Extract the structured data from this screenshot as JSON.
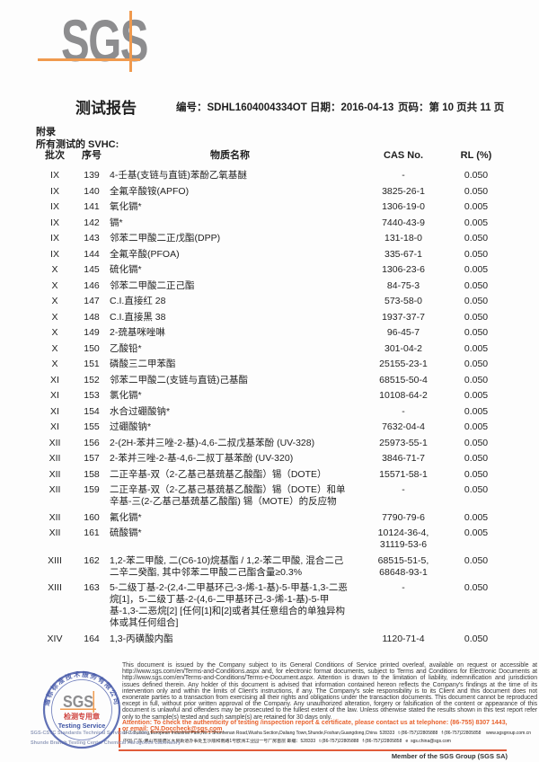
{
  "header": {
    "logo_text": "SGS",
    "title": "测试报告",
    "no_label": "编号：",
    "no_value": "SDHL1604004334OT",
    "date_label": "日期：",
    "date_value": "2016-04-13",
    "page_label": "页码：",
    "page_value": "第 10 页共 11 页"
  },
  "section": {
    "appendix": "附录",
    "svhc_heading": "所有测试的 SVHC:"
  },
  "table": {
    "headers": {
      "batch": "批次",
      "serial": "序号",
      "name": "物质名称",
      "cas": "CAS No.",
      "rl": "RL (%)"
    },
    "rows": [
      {
        "batch": "IX",
        "serial": "139",
        "name": "4-壬基(支链与直链)苯酚乙氧基醚",
        "cas": "-",
        "rl": "0.050"
      },
      {
        "batch": "IX",
        "serial": "140",
        "name": "全氟辛酸铵(APFO)",
        "cas": "3825-26-1",
        "rl": "0.050"
      },
      {
        "batch": "IX",
        "serial": "141",
        "name": "氧化镉*",
        "cas": "1306-19-0",
        "rl": "0.005"
      },
      {
        "batch": "IX",
        "serial": "142",
        "name": "镉*",
        "cas": "7440-43-9",
        "rl": "0.005"
      },
      {
        "batch": "IX",
        "serial": "143",
        "name": "邻苯二甲酸二正戊酯(DPP)",
        "cas": "131-18-0",
        "rl": "0.050"
      },
      {
        "batch": "IX",
        "serial": "144",
        "name": "全氟辛酸(PFOA)",
        "cas": "335-67-1",
        "rl": "0.050"
      },
      {
        "batch": "X",
        "serial": "145",
        "name": "硫化镉*",
        "cas": "1306-23-6",
        "rl": "0.005"
      },
      {
        "batch": "X",
        "serial": "146",
        "name": "邻苯二甲酸二正己酯",
        "cas": "84-75-3",
        "rl": "0.050"
      },
      {
        "batch": "X",
        "serial": "147",
        "name": "C.I.直接红 28",
        "cas": "573-58-0",
        "rl": "0.050"
      },
      {
        "batch": "X",
        "serial": "148",
        "name": "C.I.直接黑 38",
        "cas": "1937-37-7",
        "rl": "0.050"
      },
      {
        "batch": "X",
        "serial": "149",
        "name": "2-巯基咪唑啉",
        "cas": "96-45-7",
        "rl": "0.050"
      },
      {
        "batch": "X",
        "serial": "150",
        "name": "乙酸铅*",
        "cas": "301-04-2",
        "rl": "0.005"
      },
      {
        "batch": "X",
        "serial": "151",
        "name": "磷酸三二甲苯酯",
        "cas": "25155-23-1",
        "rl": "0.050"
      },
      {
        "batch": "XI",
        "serial": "152",
        "name": "邻苯二甲酸二(支链与直链)己基酯",
        "cas": "68515-50-4",
        "rl": "0.050"
      },
      {
        "batch": "XI",
        "serial": "153",
        "name": "氯化镉*",
        "cas": "10108-64-2",
        "rl": "0.005"
      },
      {
        "batch": "XI",
        "serial": "154",
        "name": "水合过硼酸钠*",
        "cas": "-",
        "rl": "0.005"
      },
      {
        "batch": "XI",
        "serial": "155",
        "name": "过硼酸钠*",
        "cas": "7632-04-4",
        "rl": "0.005"
      },
      {
        "batch": "XII",
        "serial": "156",
        "name": "2-(2H-苯并三唑-2-基)-4,6-二叔戊基苯酚 (UV-328)",
        "cas": "25973-55-1",
        "rl": "0.050"
      },
      {
        "batch": "XII",
        "serial": "157",
        "name": "2-苯并三唑-2-基-4,6-二叔丁基苯酚 (UV-320)",
        "cas": "3846-71-7",
        "rl": "0.050"
      },
      {
        "batch": "XII",
        "serial": "158",
        "name": "二正辛基-双（2-乙基己基巯基乙酸酯）锡（DOTE）",
        "cas": "15571-58-1",
        "rl": "0.050"
      },
      {
        "batch": "XII",
        "serial": "159",
        "name": "二正辛基-双（2-乙基己基巯基乙酸酯）锡（DOTE）和单辛基-三(2-乙基己基巯基乙酸酯) 锡（MOTE）的反应物",
        "cas": "-",
        "rl": "0.050"
      },
      {
        "batch": "XII",
        "serial": "160",
        "name": "氟化镉*",
        "cas": "7790-79-6",
        "rl": "0.005"
      },
      {
        "batch": "XII",
        "serial": "161",
        "name": "硫酸镉*",
        "cas": "10124-36-4,\n31119-53-6",
        "rl": "0.005"
      },
      {
        "batch": "XIII",
        "serial": "162",
        "name": "1,2-苯二甲酸, 二(C6-10)烷基酯 / 1,2-苯二甲酸, 混合二己二辛二癸酯, 其中邻苯二甲酸二己酯含量≥0.3%",
        "cas": "68515-51-5,\n68648-93-1",
        "rl": "0.050"
      },
      {
        "batch": "XIII",
        "serial": "163",
        "name": "5-二级丁基-2-(2,4-二甲基环己-3-烯-1-基)-5-甲基-1,3-二恶烷[1]，5-二级丁基-2-(4,6-二甲基环己-3-烯-1-基)-5-甲基-1,3-二恶烷[2] [任何[1]和[2]或者其任意组合的单独异构体或其任何组合]",
        "cas": "-",
        "rl": "0.050"
      },
      {
        "batch": "XIV",
        "serial": "164",
        "name": "1,3-丙磺酸内酯",
        "cas": "1120-71-4",
        "rl": "0.050"
      }
    ]
  },
  "stamp": {
    "ring_text": "通标标准技术服务有限公司",
    "center_logo": "SGS",
    "red_label": "检测专用章",
    "service_label": "Testing Service",
    "company_line1": "SGS-CSTC Standards Technical Services Co., Ltd.",
    "company_line2": "Shunde Branch Testing Center Chemical Hardgoods Laboratory"
  },
  "footer": {
    "legal_text": "This document is issued by the Company subject to its General Conditions of Service printed overleaf, available on request or accessible at http://www.sgs.com/en/Terms-and-Conditions.aspx and, for electronic format documents, subject to Terms and Conditions for Electronic Documents at http://www.sgs.com/en/Terms-and-Conditions/Terms-e-Document.aspx. Attention is drawn to the limitation of liability, indemnification and jurisdiction issues defined therein. Any holder of this document is advised that information contained hereon reflects the Company's findings at the time of its intervention only and within the limits of Client's instructions, if any. The Company's sole responsibility is to its Client and this document does not exonerate parties to a transaction from exercising all their rights and obligations under the transaction documents. This document cannot be reproduced except in full, without prior written approval of the Company. Any unauthorized alteration, forgery or falsification of the content or appearance of this document is unlawful and offenders may be prosecuted to the fullest extent of the law. Unless otherwise stated the results shown in this test report refer only to the sample(s) tested and such sample(s) are retained for 30 days only.",
    "attention_line1": "Attention: To check the authenticity of testing /inspection report & certificate, please contact us at telephone: (86-755) 8307 1443,",
    "attention_email_prefix": "or email: ",
    "attention_email": "CN.Doccheck@sgs.com",
    "address_en": "1F/1 Building,European Industrial Park,No.1 Shunhenan Road,Wusha Section,Daliang Town,Shunde,Foshan,Guangdong,China  528333   t (86-757)22805888   f (86-757)22805858    www.sgsgroup.com.cn",
    "address_cn": "中国·广东·佛山市顺德区大良街道办事处五沙顺和南路1号欧洲工业园一号厂房首层 邮编：528333   t (86-757)22805888   f (86-757)22805858   e  sgs.china@sgs.com",
    "member_line": "Member of the SGS Group (SGS SA)"
  },
  "colors": {
    "sgs_gray": "#8d8d8f",
    "accent_orange": "#f09a4e",
    "stamp_blue": "#4558a8",
    "stamp_red": "#cf4540",
    "attention_orange": "#e8622d",
    "footer_line_red": "#e05b3a"
  }
}
